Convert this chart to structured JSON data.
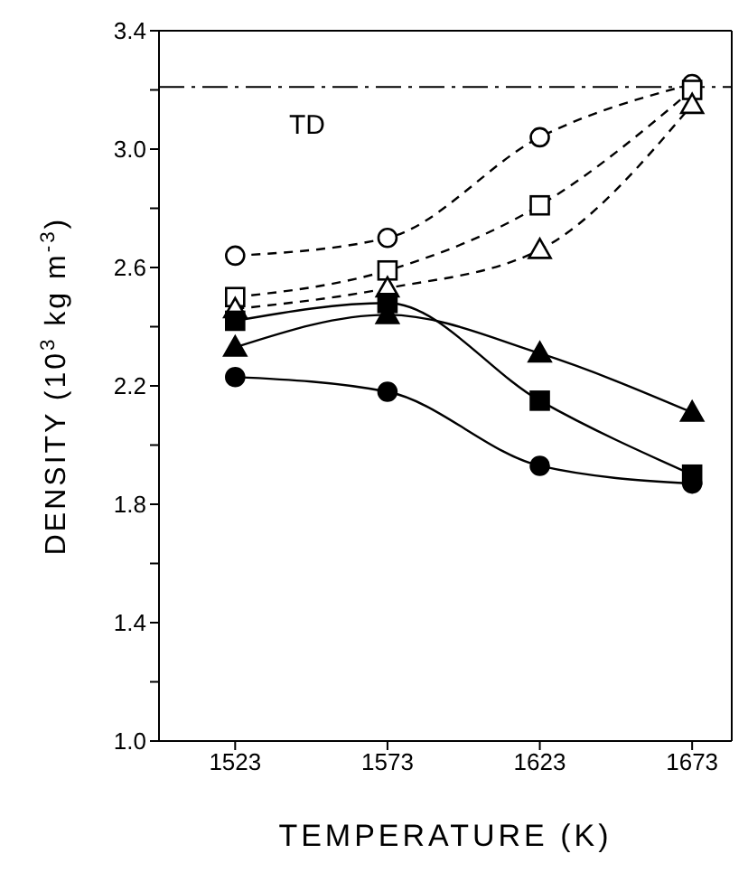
{
  "chart_data": {
    "type": "line",
    "xlabel": "TEMPERATURE (K)",
    "ylabel": "DENSITY (10$^{3}$ kg m$^{-3}$)",
    "x": [
      1523,
      1573,
      1623,
      1673
    ],
    "series": [
      {
        "color": "#000000",
        "marker": "circle",
        "line_style": "dashed",
        "values": [
          2.64,
          2.7,
          3.04,
          3.22
        ]
      },
      {
        "color": "#000000",
        "marker": "square",
        "line_style": "dashed",
        "values": [
          2.5,
          2.59,
          2.81,
          3.2
        ]
      },
      {
        "color": "#000000",
        "marker": "triangle",
        "line_style": "dashed",
        "values": [
          2.46,
          2.53,
          2.66,
          3.15
        ]
      },
      {
        "color": "#000000",
        "marker": "square",
        "line_style": "solid",
        "values": [
          2.42,
          2.48,
          2.15,
          1.9
        ]
      },
      {
        "color": "#000000",
        "marker": "triangle",
        "line_style": "solid",
        "values": [
          2.33,
          2.44,
          2.31,
          2.11
        ]
      },
      {
        "color": "#000000",
        "marker": "circle",
        "line_style": "solid",
        "values": [
          2.23,
          2.18,
          1.93,
          1.87
        ]
      }
    ],
    "xlim": [
      1498,
      1686
    ],
    "xticks": [
      1523,
      1573,
      1623,
      1673
    ],
    "ylim": [
      1.0,
      3.4
    ],
    "yticks": [
      {
        "value": 1.0,
        "label": "1.0"
      },
      {
        "value": 1.2,
        "label": null
      },
      1.4,
      {
        "value": 1.6,
        "label": null
      },
      1.8,
      {
        "value": 2.0,
        "label": null
      },
      2.2,
      {
        "value": 2.4,
        "label": null
      },
      2.6,
      {
        "value": 2.8,
        "label": null
      },
      {
        "value": 3.0,
        "label": "3.0"
      },
      {
        "value": 3.2,
        "label": null
      },
      3.4
    ],
    "ref_lines": [
      {
        "axis": "y",
        "value": 3.21,
        "label": "TD",
        "color": "#000000",
        "line_style": "dashdot"
      }
    ]
  }
}
